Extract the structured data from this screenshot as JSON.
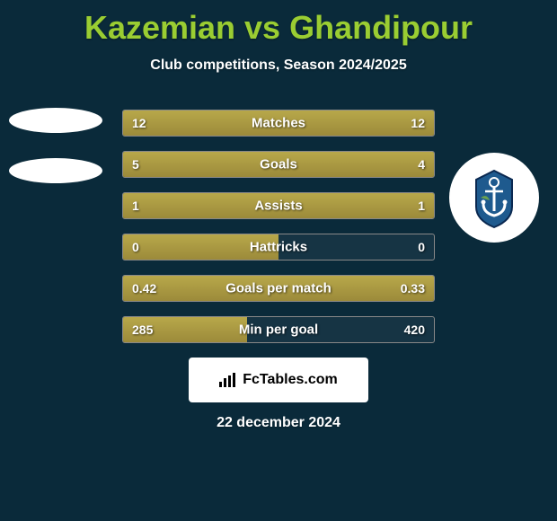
{
  "title": "Kazemian vs Ghandipour",
  "subtitle": "Club competitions, Season 2024/2025",
  "stats": [
    {
      "label": "Matches",
      "left_val": "12",
      "right_val": "12",
      "left_pct": 50,
      "right_pct": 50
    },
    {
      "label": "Goals",
      "left_val": "5",
      "right_val": "4",
      "left_pct": 55,
      "right_pct": 45
    },
    {
      "label": "Assists",
      "left_val": "1",
      "right_val": "1",
      "left_pct": 50,
      "right_pct": 50
    },
    {
      "label": "Hattricks",
      "left_val": "0",
      "right_val": "0",
      "left_pct": 50,
      "right_pct": 0
    },
    {
      "label": "Goals per match",
      "left_val": "0.42",
      "right_val": "0.33",
      "left_pct": 56,
      "right_pct": 44
    },
    {
      "label": "Min per goal",
      "left_val": "285",
      "right_val": "420",
      "left_pct": 40,
      "right_pct": 0
    }
  ],
  "footer_brand": "FcTables.com",
  "footer_date": "22 december 2024",
  "colors": {
    "bg": "#0a2a3a",
    "title": "#9acd32",
    "text": "#ffffff",
    "bar_fill": "#b8a84a",
    "bar_border": "#888888",
    "footer_bg": "#ffffff",
    "crest_blue": "#1e5a8e",
    "crest_navy": "#0a2850"
  }
}
